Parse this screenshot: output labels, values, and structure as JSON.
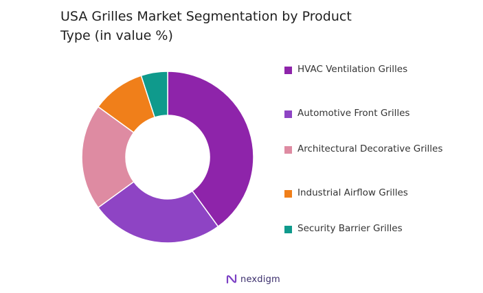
{
  "chart_data": {
    "type": "pie",
    "donut": true,
    "title": "USA Grilles Market Segmentation by Product Type (in value %)",
    "categories": [
      "HVAC Ventilation Grilles",
      "Automotive Front Grilles",
      "Architectural Decorative Grilles",
      "Industrial Airflow Grilles",
      "Security Barrier Grilles"
    ],
    "values": [
      40,
      25,
      20,
      10,
      5
    ],
    "colors": [
      "#8e24aa",
      "#8e44c4",
      "#de8ba2",
      "#f07f1a",
      "#0f9a8c"
    ],
    "legend_position": "right"
  },
  "brand": {
    "name": "nexdigm"
  }
}
